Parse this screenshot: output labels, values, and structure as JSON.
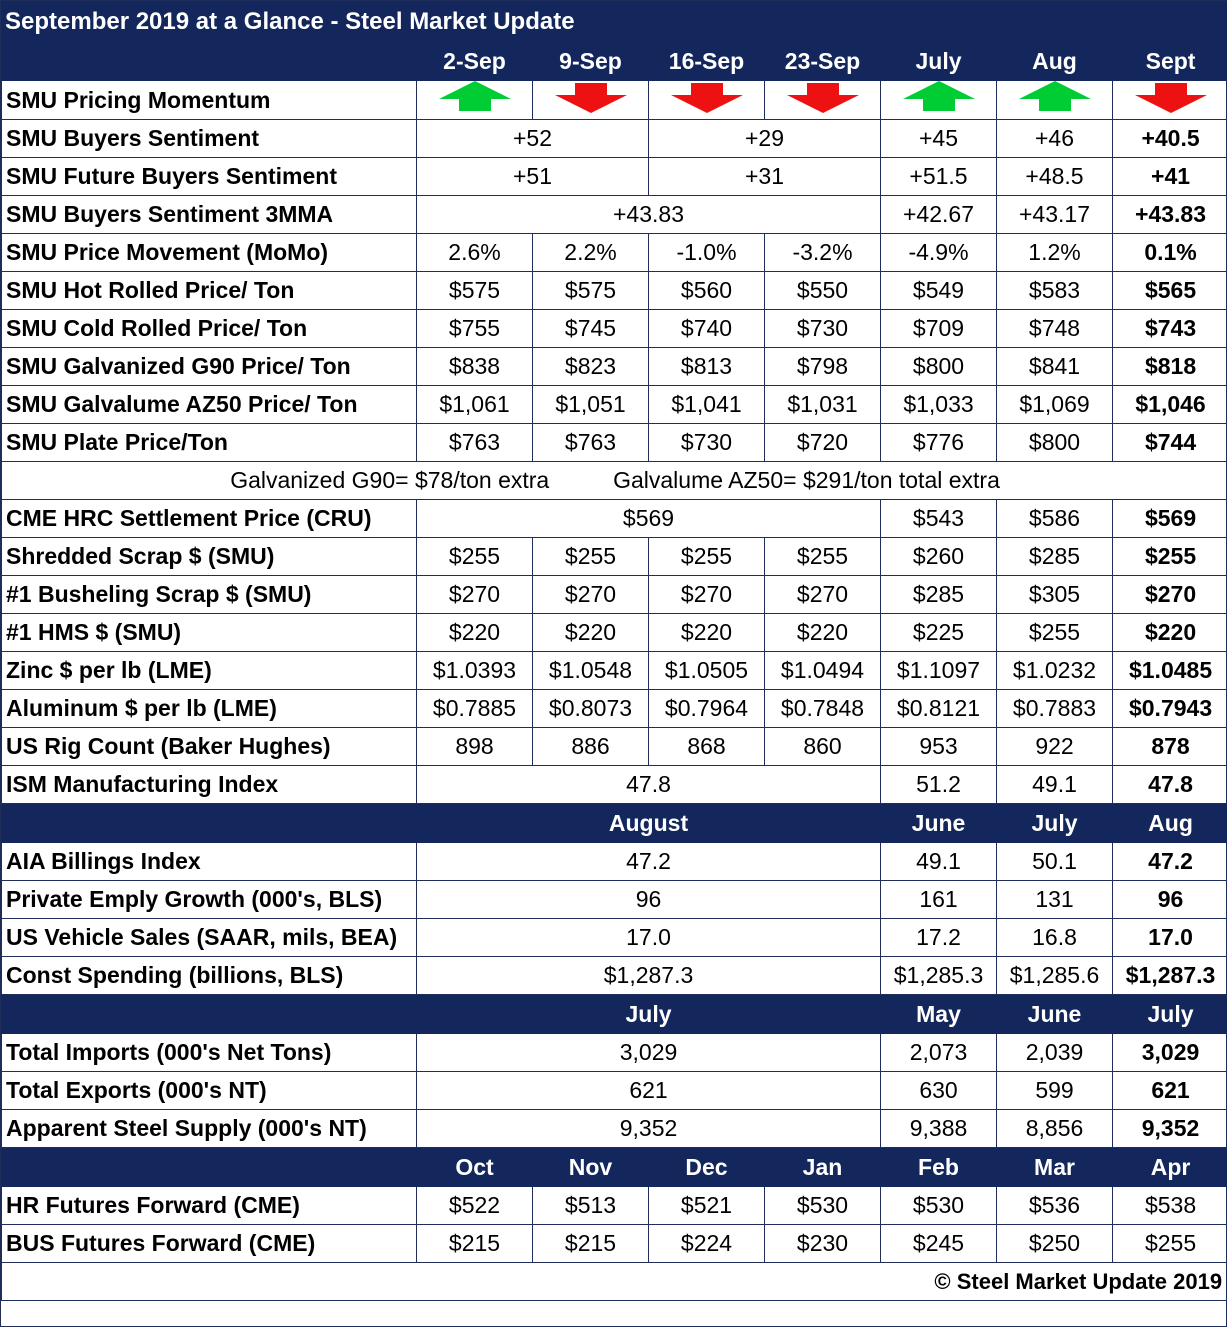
{
  "title": "September 2019 at a Glance - Steel Market Update",
  "columns": [
    "2-Sep",
    "9-Sep",
    "16-Sep",
    "23-Sep",
    "July",
    "Aug",
    "Sept"
  ],
  "colors": {
    "header_bg": "#13275c",
    "up_arrow": "#00cc33",
    "down_arrow": "#ee1111"
  },
  "momentum": {
    "label": "SMU Pricing Momentum",
    "arrows": [
      "up",
      "down",
      "down",
      "down",
      "up",
      "up",
      "down"
    ],
    "icons": [
      "up-arrow-icon",
      "down-arrow-icon"
    ]
  },
  "buyers_sentiment": {
    "label": "SMU Buyers Sentiment",
    "wk_a": "+52",
    "wk_b": "+29",
    "m1": "+45",
    "m2": "+46",
    "m3": "+40.5"
  },
  "future_sentiment": {
    "label": "SMU Future Buyers Sentiment",
    "wk_a": "+51",
    "wk_b": "+31",
    "m1": "+51.5",
    "m2": "+48.5",
    "m3": "+41"
  },
  "sentiment_3mma": {
    "label": "SMU Buyers Sentiment 3MMA",
    "wk": "+43.83",
    "m1": "+42.67",
    "m2": "+43.17",
    "m3": "+43.83"
  },
  "rows_full": [
    {
      "label": "SMU Price Movement (MoMo)",
      "v": [
        "2.6%",
        "2.2%",
        "-1.0%",
        "-3.2%",
        "-4.9%",
        "1.2%",
        "0.1%"
      ]
    },
    {
      "label": "SMU Hot Rolled Price/ Ton",
      "v": [
        "$575",
        "$575",
        "$560",
        "$550",
        "$549",
        "$583",
        "$565"
      ]
    },
    {
      "label": "SMU Cold Rolled Price/ Ton",
      "v": [
        "$755",
        "$745",
        "$740",
        "$730",
        "$709",
        "$748",
        "$743"
      ]
    },
    {
      "label": "SMU Galvanized G90 Price/ Ton",
      "v": [
        "$838",
        "$823",
        "$813",
        "$798",
        "$800",
        "$841",
        "$818"
      ]
    },
    {
      "label": "SMU Galvalume AZ50 Price/ Ton",
      "v": [
        "$1,061",
        "$1,051",
        "$1,041",
        "$1,031",
        "$1,033",
        "$1,069",
        "$1,046"
      ]
    },
    {
      "label": "SMU Plate Price/Ton",
      "v": [
        "$763",
        "$763",
        "$730",
        "$720",
        "$776",
        "$800",
        "$744"
      ]
    }
  ],
  "note": "Galvanized G90= $78/ton extra          Galvalume AZ50= $291/ton total extra",
  "cme_hrc": {
    "label": "CME HRC Settlement Price (CRU)",
    "wk": "$569",
    "m1": "$543",
    "m2": "$586",
    "m3": "$569"
  },
  "rows_full2": [
    {
      "label": "Shredded Scrap $ (SMU)",
      "v": [
        "$255",
        "$255",
        "$255",
        "$255",
        "$260",
        "$285",
        "$255"
      ]
    },
    {
      "label": "#1 Busheling Scrap $ (SMU)",
      "v": [
        "$270",
        "$270",
        "$270",
        "$270",
        "$285",
        "$305",
        "$270"
      ]
    },
    {
      "label": "#1 HMS $ (SMU)",
      "v": [
        "$220",
        "$220",
        "$220",
        "$220",
        "$225",
        "$255",
        "$220"
      ]
    },
    {
      "label": "Zinc $ per lb (LME)",
      "v": [
        "$1.0393",
        "$1.0548",
        "$1.0505",
        "$1.0494",
        "$1.1097",
        "$1.0232",
        "$1.0485"
      ]
    },
    {
      "label": "Aluminum $ per lb (LME)",
      "v": [
        "$0.7885",
        "$0.8073",
        "$0.7964",
        "$0.7848",
        "$0.8121",
        "$0.7883",
        "$0.7943"
      ]
    },
    {
      "label": "US Rig Count (Baker Hughes)",
      "v": [
        "898",
        "886",
        "868",
        "860",
        "953",
        "922",
        "878"
      ]
    }
  ],
  "ism": {
    "label": "ISM Manufacturing Index",
    "wk": "47.8",
    "m1": "51.2",
    "m2": "49.1",
    "m3": "47.8"
  },
  "section2": {
    "header": {
      "wk": "August",
      "m1": "June",
      "m2": "July",
      "m3": "Aug"
    },
    "rows": [
      {
        "label": "AIA Billings Index",
        "wk": "47.2",
        "m1": "49.1",
        "m2": "50.1",
        "m3": "47.2"
      },
      {
        "label": "Private Emply Growth (000's, BLS)",
        "wk": "96",
        "m1": "161",
        "m2": "131",
        "m3": "96"
      },
      {
        "label": "US Vehicle Sales (SAAR, mils, BEA)",
        "wk": "17.0",
        "m1": "17.2",
        "m2": "16.8",
        "m3": "17.0"
      },
      {
        "label": "Const Spending (billions, BLS)",
        "wk": "$1,287.3",
        "m1": "$1,285.3",
        "m2": "$1,285.6",
        "m3": "$1,287.3"
      }
    ]
  },
  "section3": {
    "header": {
      "wk": "July",
      "m1": "May",
      "m2": "June",
      "m3": "July"
    },
    "rows": [
      {
        "label": "Total Imports (000's Net Tons)",
        "wk": "3,029",
        "m1": "2,073",
        "m2": "2,039",
        "m3": "3,029"
      },
      {
        "label": "Total Exports (000's NT)",
        "wk": "621",
        "m1": "630",
        "m2": "599",
        "m3": "621"
      },
      {
        "label": "Apparent Steel Supply (000's NT)",
        "wk": "9,352",
        "m1": "9,388",
        "m2": "8,856",
        "m3": "9,352"
      }
    ]
  },
  "section4": {
    "header": [
      "Oct",
      "Nov",
      "Dec",
      "Jan",
      "Feb",
      "Mar",
      "Apr"
    ],
    "rows": [
      {
        "label": "HR Futures Forward (CME)",
        "v": [
          "$522",
          "$513",
          "$521",
          "$530",
          "$530",
          "$536",
          "$538"
        ]
      },
      {
        "label": "BUS Futures Forward (CME)",
        "v": [
          "$215",
          "$215",
          "$224",
          "$230",
          "$245",
          "$250",
          "$255"
        ]
      }
    ]
  },
  "footer": "© Steel Market Update 2019"
}
